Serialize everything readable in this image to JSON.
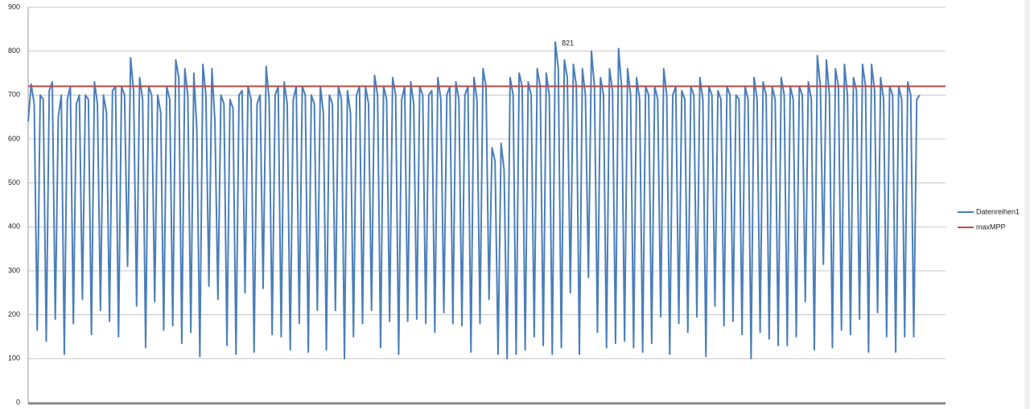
{
  "chart_data": {
    "type": "line",
    "ylim": [
      0,
      900
    ],
    "yticks": [
      0,
      100,
      200,
      300,
      400,
      500,
      600,
      700,
      800,
      900
    ],
    "grid": true,
    "annotation_point": 175,
    "series": [
      {
        "name": "Datenreihen1",
        "color": "#4a7ebb",
        "values": [
          640,
          725,
          680,
          165,
          700,
          690,
          140,
          710,
          730,
          190,
          650,
          700,
          110,
          690,
          720,
          180,
          680,
          700,
          235,
          700,
          690,
          155,
          730,
          680,
          210,
          700,
          660,
          185,
          710,
          720,
          150,
          720,
          700,
          310,
          785,
          710,
          220,
          740,
          690,
          125,
          720,
          700,
          230,
          700,
          660,
          165,
          720,
          690,
          175,
          780,
          740,
          135,
          760,
          700,
          160,
          750,
          620,
          105,
          770,
          700,
          265,
          760,
          640,
          235,
          700,
          680,
          130,
          690,
          670,
          110,
          700,
          710,
          250,
          720,
          690,
          115,
          680,
          700,
          260,
          765,
          690,
          155,
          700,
          720,
          150,
          730,
          680,
          120,
          690,
          720,
          180,
          720,
          700,
          115,
          700,
          680,
          210,
          720,
          660,
          120,
          700,
          680,
          210,
          720,
          690,
          100,
          710,
          660,
          150,
          700,
          720,
          180,
          720,
          680,
          210,
          745,
          700,
          125,
          720,
          690,
          185,
          740,
          700,
          110,
          690,
          720,
          185,
          730,
          680,
          190,
          720,
          700,
          180,
          700,
          710,
          160,
          740,
          690,
          205,
          700,
          720,
          180,
          730,
          690,
          175,
          700,
          720,
          115,
          740,
          690,
          180,
          760,
          720,
          235,
          580,
          550,
          110,
          590,
          530,
          100,
          740,
          700,
          110,
          750,
          720,
          120,
          730,
          700,
          150,
          760,
          720,
          130,
          750,
          700,
          110,
          821,
          760,
          125,
          780,
          740,
          250,
          770,
          720,
          110,
          760,
          700,
          285,
          800,
          720,
          160,
          740,
          700,
          125,
          760,
          710,
          135,
          806,
          720,
          140,
          760,
          700,
          125,
          740,
          690,
          115,
          720,
          700,
          135,
          720,
          690,
          195,
          760,
          700,
          110,
          700,
          720,
          180,
          710,
          690,
          160,
          720,
          700,
          195,
          740,
          690,
          105,
          720,
          700,
          220,
          710,
          690,
          175,
          720,
          700,
          185,
          700,
          690,
          155,
          720,
          690,
          100,
          740,
          690,
          160,
          730,
          700,
          145,
          720,
          690,
          130,
          740,
          700,
          130,
          720,
          690,
          150,
          720,
          700,
          230,
          730,
          690,
          120,
          790,
          720,
          315,
          780,
          700,
          125,
          760,
          720,
          165,
          770,
          700,
          155,
          740,
          710,
          190,
          770,
          720,
          115,
          770,
          710,
          205,
          740,
          690,
          150,
          720,
          700,
          115,
          720,
          690,
          150,
          730,
          700,
          150,
          690,
          700
        ]
      },
      {
        "name": "maxMPP",
        "color": "#be4b48",
        "kind": "hline",
        "values": [
          720
        ]
      }
    ]
  }
}
